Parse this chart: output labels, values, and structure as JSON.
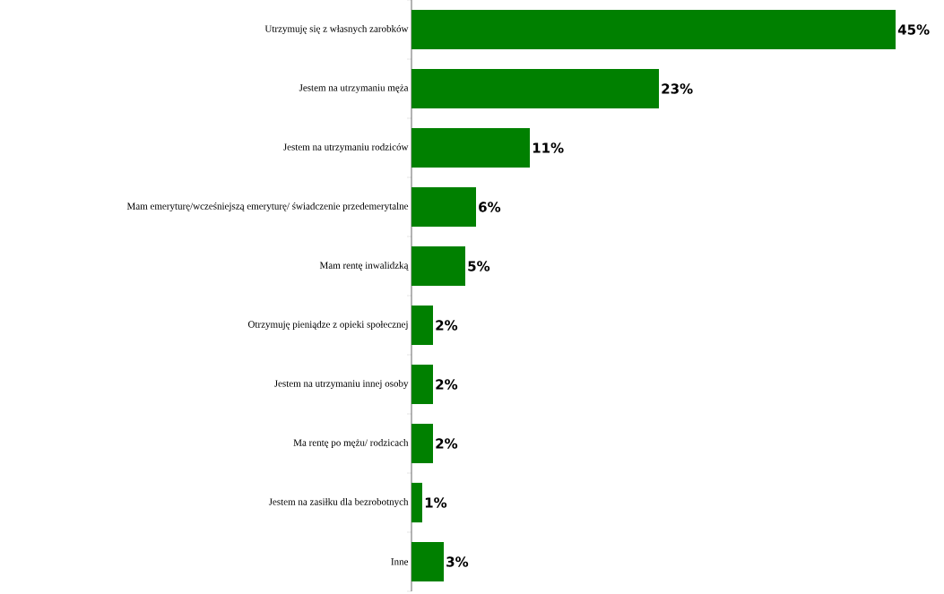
{
  "chart_data": {
    "type": "bar",
    "orientation": "horizontal",
    "categories": [
      "Utrzymuję się z własnych zarobków",
      "Jestem na utrzymaniu męża",
      "Jestem na utrzymaniu rodziców",
      "Mam emeryturę/wcześniejszą emeryturę/ świadczenie przedemerytalne",
      "Mam rentę inwalidzką",
      "Otrzymuję pieniądze z opieki społecznej",
      "Jestem na utrzymaniu innej osoby",
      "Ma rentę po mężu/ rodzicach",
      "Jestem na zasiłku dla bezrobotnych",
      "Inne"
    ],
    "values": [
      45,
      23,
      11,
      6,
      5,
      2,
      2,
      2,
      1,
      3
    ],
    "value_labels": [
      "45%",
      "23%",
      "11%",
      "6%",
      "5%",
      "2%",
      "2%",
      "2%",
      "1%",
      "3%"
    ],
    "color": "#008000"
  }
}
